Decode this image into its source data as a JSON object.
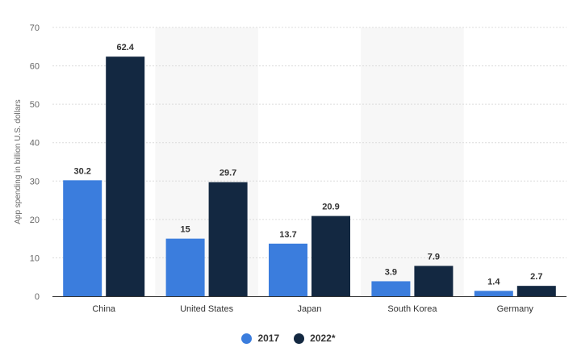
{
  "chart_data": {
    "type": "bar",
    "title": "",
    "xlabel": "",
    "ylabel": "App spending in billion U.S. dollars",
    "ylim": [
      0,
      70
    ],
    "yticks": [
      0,
      10,
      20,
      30,
      40,
      50,
      60,
      70
    ],
    "grid": true,
    "legend_position": "bottom-center",
    "categories": [
      "China",
      "United States",
      "Japan",
      "South Korea",
      "Germany"
    ],
    "series": [
      {
        "name": "2017",
        "color": "#3b7ddd",
        "values": [
          30.2,
          15,
          13.7,
          3.9,
          1.4
        ],
        "labels": [
          "30.2",
          "15",
          "13.7",
          "3.9",
          "1.4"
        ]
      },
      {
        "name": "2022*",
        "color": "#132841",
        "values": [
          62.4,
          29.7,
          20.9,
          7.9,
          2.7
        ],
        "labels": [
          "62.4",
          "29.7",
          "20.9",
          "7.9",
          "2.7"
        ]
      }
    ],
    "band_color": "#f7f7f7",
    "grid_color": "#dcdcdc"
  }
}
